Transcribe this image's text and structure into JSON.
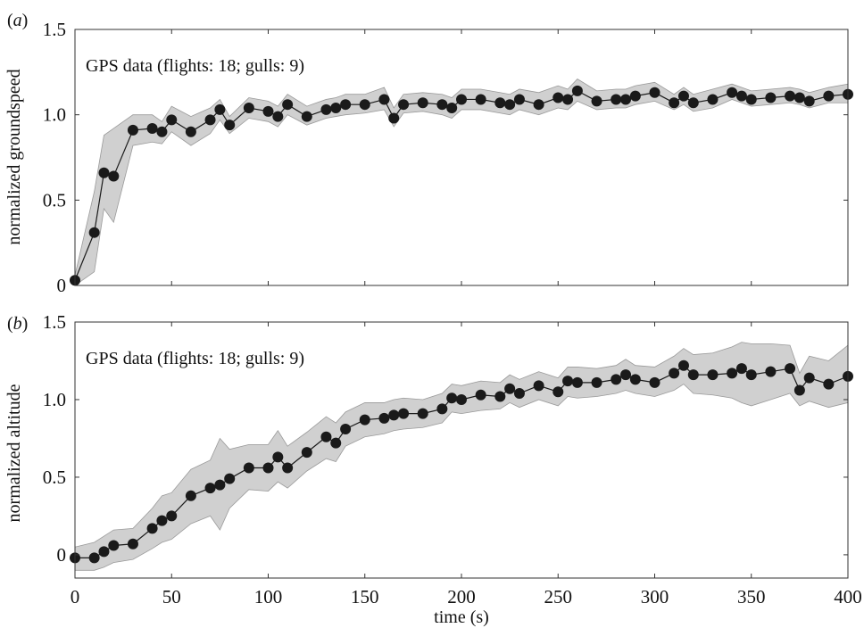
{
  "chart_data": [
    {
      "type": "line",
      "panel_label": "(a)",
      "ylabel": "normalized groundspeed",
      "xlabel": "",
      "annotation": "GPS data (flights: 18; gulls: 9)",
      "xlim": [
        0,
        400
      ],
      "ylim": [
        0,
        1.5
      ],
      "xticks": [
        0,
        50,
        100,
        150,
        200,
        250,
        300,
        350,
        400
      ],
      "xtick_labels": [
        "",
        "",
        "",
        "",
        "",
        "",
        "",
        "",
        ""
      ],
      "yticks": [
        0,
        0.5,
        1.0,
        1.5
      ],
      "ytick_labels": [
        "0",
        "0.5",
        "1.0",
        "1.5"
      ],
      "band_color": "#d0d0d0",
      "line_color": "#1a1a1a",
      "marker_color": "#1a1a1a",
      "series": [
        {
          "x": [
            0,
            10,
            15,
            20,
            30,
            40,
            45,
            50,
            60,
            70,
            75,
            80,
            90,
            100,
            105,
            110,
            120,
            130,
            135,
            140,
            150,
            160,
            165,
            170,
            180,
            190,
            195,
            200,
            210,
            220,
            225,
            230,
            240,
            250,
            255,
            260,
            270,
            280,
            285,
            290,
            300,
            310,
            315,
            320,
            330,
            340,
            345,
            350,
            360,
            370,
            375,
            380,
            390,
            400
          ],
          "y": [
            0.03,
            0.31,
            0.66,
            0.64,
            0.91,
            0.92,
            0.9,
            0.97,
            0.9,
            0.97,
            1.03,
            0.94,
            1.04,
            1.02,
            0.99,
            1.06,
            0.99,
            1.03,
            1.04,
            1.06,
            1.06,
            1.09,
            0.98,
            1.06,
            1.07,
            1.06,
            1.04,
            1.09,
            1.09,
            1.07,
            1.06,
            1.09,
            1.06,
            1.1,
            1.09,
            1.14,
            1.08,
            1.09,
            1.09,
            1.11,
            1.13,
            1.07,
            1.11,
            1.07,
            1.09,
            1.13,
            1.11,
            1.09,
            1.1,
            1.11,
            1.1,
            1.08,
            1.11,
            1.12
          ],
          "lower": [
            0.0,
            0.08,
            0.45,
            0.37,
            0.82,
            0.84,
            0.83,
            0.9,
            0.82,
            0.89,
            0.97,
            0.89,
            0.98,
            0.96,
            0.93,
            1.0,
            0.94,
            0.98,
            0.99,
            1.0,
            1.01,
            1.03,
            0.93,
            1.01,
            1.02,
            1.0,
            0.98,
            1.03,
            1.03,
            1.01,
            1.0,
            1.03,
            1.0,
            1.04,
            1.03,
            1.08,
            1.03,
            1.04,
            1.04,
            1.06,
            1.08,
            1.03,
            1.06,
            1.02,
            1.04,
            1.09,
            1.07,
            1.05,
            1.06,
            1.07,
            1.06,
            1.04,
            1.07,
            1.07
          ],
          "upper": [
            0.06,
            0.55,
            0.88,
            0.92,
            1.0,
            1.0,
            0.96,
            1.05,
            0.99,
            1.04,
            1.09,
            0.99,
            1.1,
            1.08,
            1.05,
            1.12,
            1.05,
            1.09,
            1.1,
            1.12,
            1.12,
            1.16,
            1.04,
            1.12,
            1.13,
            1.12,
            1.1,
            1.15,
            1.15,
            1.13,
            1.12,
            1.15,
            1.13,
            1.17,
            1.15,
            1.21,
            1.14,
            1.15,
            1.15,
            1.17,
            1.19,
            1.12,
            1.16,
            1.12,
            1.15,
            1.18,
            1.16,
            1.14,
            1.15,
            1.16,
            1.15,
            1.13,
            1.16,
            1.18
          ]
        }
      ]
    },
    {
      "type": "line",
      "panel_label": "(b)",
      "ylabel": "normalized altitude",
      "xlabel": "time (s)",
      "annotation": "GPS data (flights: 18; gulls: 9)",
      "xlim": [
        0,
        400
      ],
      "ylim": [
        -0.15,
        1.5
      ],
      "xticks": [
        0,
        50,
        100,
        150,
        200,
        250,
        300,
        350,
        400
      ],
      "xtick_labels": [
        "0",
        "50",
        "100",
        "150",
        "200",
        "250",
        "300",
        "350",
        "400"
      ],
      "yticks": [
        0,
        0.5,
        1.0,
        1.5
      ],
      "ytick_labels": [
        "0",
        "0.5",
        "1.0",
        "1.5"
      ],
      "band_color": "#d0d0d0",
      "line_color": "#1a1a1a",
      "marker_color": "#1a1a1a",
      "series": [
        {
          "x": [
            0,
            10,
            15,
            20,
            30,
            40,
            45,
            50,
            60,
            70,
            75,
            80,
            90,
            100,
            105,
            110,
            120,
            130,
            135,
            140,
            150,
            160,
            165,
            170,
            180,
            190,
            195,
            200,
            210,
            220,
            225,
            230,
            240,
            250,
            255,
            260,
            270,
            280,
            285,
            290,
            300,
            310,
            315,
            320,
            330,
            340,
            345,
            350,
            360,
            370,
            375,
            380,
            390,
            400
          ],
          "y": [
            -0.02,
            -0.02,
            0.02,
            0.06,
            0.07,
            0.17,
            0.22,
            0.25,
            0.38,
            0.43,
            0.45,
            0.49,
            0.56,
            0.56,
            0.63,
            0.56,
            0.66,
            0.76,
            0.72,
            0.81,
            0.87,
            0.88,
            0.9,
            0.91,
            0.91,
            0.94,
            1.01,
            1.0,
            1.03,
            1.02,
            1.07,
            1.04,
            1.09,
            1.05,
            1.12,
            1.11,
            1.11,
            1.13,
            1.16,
            1.13,
            1.11,
            1.17,
            1.22,
            1.16,
            1.16,
            1.17,
            1.2,
            1.16,
            1.18,
            1.2,
            1.06,
            1.14,
            1.1,
            1.15
          ],
          "lower": [
            -0.1,
            -0.1,
            -0.08,
            -0.05,
            -0.03,
            0.04,
            0.08,
            0.1,
            0.2,
            0.25,
            0.16,
            0.3,
            0.42,
            0.41,
            0.47,
            0.43,
            0.54,
            0.62,
            0.6,
            0.7,
            0.76,
            0.78,
            0.8,
            0.81,
            0.82,
            0.85,
            0.92,
            0.91,
            0.93,
            0.94,
            0.98,
            0.95,
            1.0,
            0.96,
            1.02,
            1.01,
            1.02,
            1.04,
            1.06,
            1.04,
            1.02,
            1.06,
            1.1,
            1.04,
            1.03,
            1.01,
            0.98,
            0.96,
            1.0,
            1.04,
            0.96,
            0.99,
            0.95,
            0.98
          ],
          "upper": [
            0.05,
            0.08,
            0.12,
            0.16,
            0.17,
            0.3,
            0.38,
            0.4,
            0.55,
            0.61,
            0.75,
            0.68,
            0.71,
            0.71,
            0.8,
            0.7,
            0.79,
            0.89,
            0.85,
            0.92,
            0.98,
            0.98,
            1.0,
            1.01,
            1.0,
            1.04,
            1.1,
            1.09,
            1.12,
            1.11,
            1.16,
            1.13,
            1.18,
            1.14,
            1.21,
            1.21,
            1.2,
            1.22,
            1.26,
            1.22,
            1.21,
            1.28,
            1.33,
            1.29,
            1.3,
            1.34,
            1.37,
            1.36,
            1.36,
            1.35,
            1.17,
            1.28,
            1.25,
            1.35
          ]
        }
      ]
    }
  ]
}
